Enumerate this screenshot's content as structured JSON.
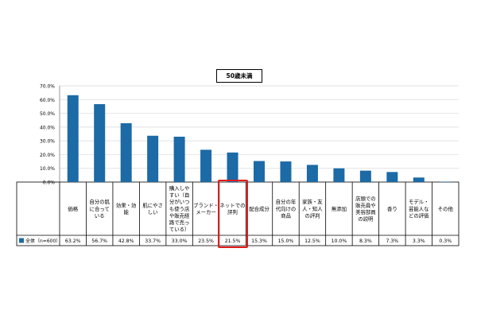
{
  "chart_data": {
    "type": "bar",
    "title": "50歳未満",
    "xlabel": "",
    "ylabel": "",
    "ylim": [
      0,
      70
    ],
    "y_ticks": [
      "0.0%",
      "10.0%",
      "20.0%",
      "30.0%",
      "40.0%",
      "50.0%",
      "60.0%",
      "70.0%"
    ],
    "grid": true,
    "bar_color": "#1c6aa6",
    "highlight_color": "#e21b1b",
    "highlight_index": 6,
    "categories": [
      "価格",
      "自分の肌に合っている",
      "効果・効能",
      "肌にやさしい",
      "購入しやすい（自分がいつも使う店や販売経路で売っている）",
      "ブランド・メーカー",
      "ネットでの評判",
      "配合成分",
      "自分の年代向けの商品",
      "家族・友人・知人の評判",
      "無添加",
      "店頭での販売員や美容部員の説明",
      "香り",
      "モデル・芸能人などの評価",
      "その他"
    ],
    "category_lines": [
      [
        "価格"
      ],
      [
        "自分の肌",
        "に合って",
        "いる"
      ],
      [
        "効果・効",
        "能"
      ],
      [
        "肌にやさ",
        "しい"
      ],
      [
        "購入しや",
        "すい（自",
        "分がいつ",
        "も使う店",
        "や販売経",
        "路で売っ",
        "ている）"
      ],
      [
        "ブランド・",
        "メーカー"
      ],
      [
        "ネットでの",
        "評判"
      ],
      [
        "配合成分"
      ],
      [
        "自分の年",
        "代向けの",
        "商品"
      ],
      [
        "家族・友",
        "人・知人",
        "の評判"
      ],
      [
        "無添加"
      ],
      [
        "店頭での",
        "販売員や",
        "美容部員",
        "の説明"
      ],
      [
        "香り"
      ],
      [
        "モデル・",
        "芸能人な",
        "どの評価"
      ],
      [
        "その他"
      ]
    ],
    "series": [
      {
        "name": "全体（n=600）",
        "values": [
          63.2,
          56.7,
          42.8,
          33.7,
          33.0,
          23.5,
          21.5,
          15.3,
          15.0,
          12.5,
          10.0,
          8.3,
          7.3,
          3.3,
          0.3
        ],
        "labels": [
          "63.2%",
          "56.7%",
          "42.8%",
          "33.7%",
          "33.0%",
          "23.5%",
          "21.5%",
          "15.3%",
          "15.0%",
          "12.5%",
          "10.0%",
          "8.3%",
          "7.3%",
          "3.3%",
          "0.3%"
        ]
      }
    ]
  }
}
